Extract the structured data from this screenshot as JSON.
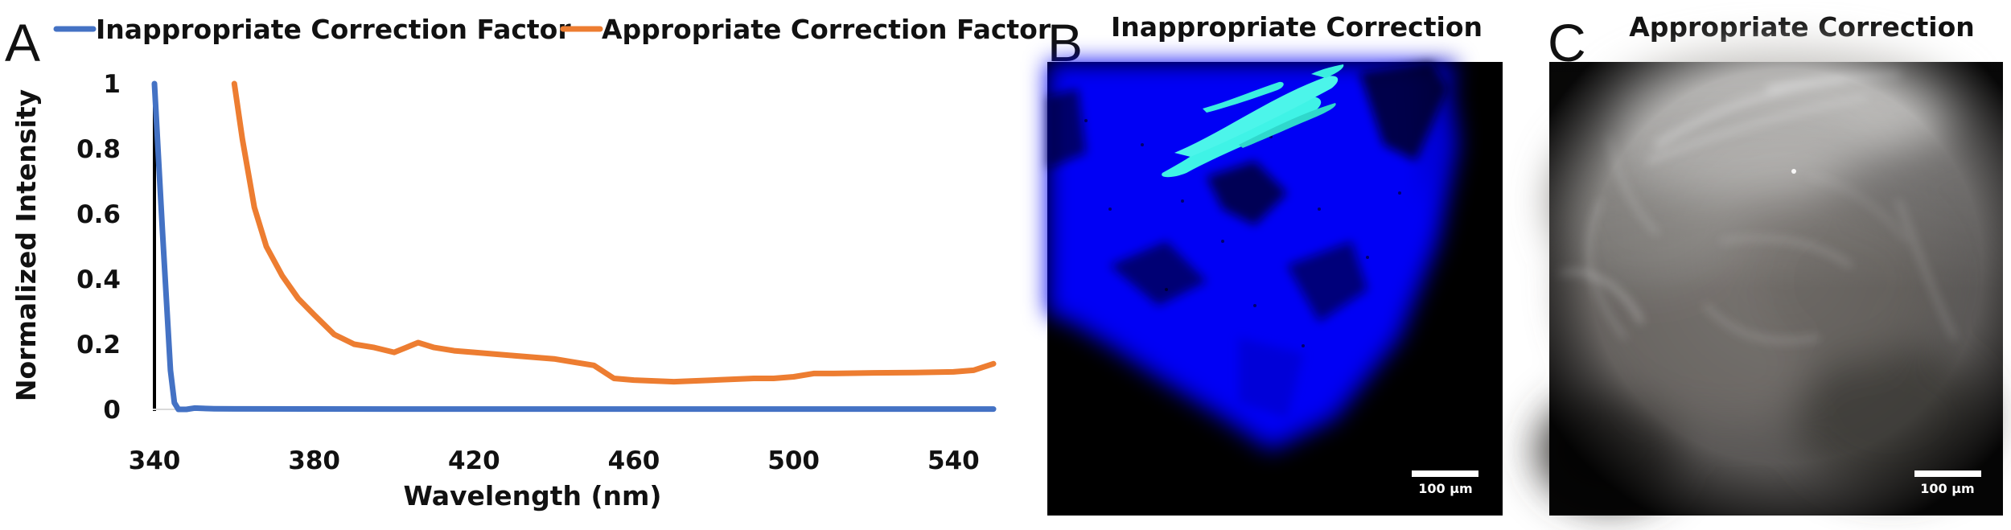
{
  "panels": {
    "a": {
      "letter": "A"
    },
    "b": {
      "letter": "B",
      "title": "Inappropriate Correction",
      "scale_bar_label": "100 µm"
    },
    "c": {
      "letter": "C",
      "title": "Appropriate Correction",
      "scale_bar_label": "100 µm"
    }
  },
  "colors": {
    "inappropriate": "#4472C4",
    "appropriate": "#ED7D31"
  },
  "chart_data": {
    "type": "line",
    "title": "",
    "xlabel": "Wavelength (nm)",
    "ylabel": "Normalized Intensity",
    "xlim": [
      340,
      550
    ],
    "ylim": [
      0,
      1
    ],
    "xticks": [
      340,
      380,
      420,
      460,
      500,
      540
    ],
    "yticks": [
      0,
      0.2,
      0.4,
      0.6,
      0.8,
      1
    ],
    "ytick_labels": [
      "0",
      "0.2",
      "0.4",
      "0.6",
      "0.8",
      "1"
    ],
    "legend_position": "top",
    "series": [
      {
        "name": "Inappropriate Correction Factor",
        "x": [
          340,
          342,
          344,
          345,
          346,
          348,
          350,
          352,
          355,
          360,
          400,
          450,
          500,
          550
        ],
        "y": [
          1.0,
          0.55,
          0.12,
          0.02,
          0.0,
          0.0,
          0.004,
          0.003,
          0.002,
          0.0015,
          0.001,
          0.001,
          0.001,
          0.001
        ]
      },
      {
        "name": "Appropriate Correction Factor",
        "x": [
          360,
          362,
          365,
          368,
          372,
          376,
          380,
          385,
          390,
          395,
          400,
          403,
          406,
          410,
          415,
          420,
          430,
          440,
          445,
          450,
          455,
          460,
          470,
          480,
          490,
          495,
          500,
          505,
          510,
          520,
          530,
          540,
          545,
          550
        ],
        "y": [
          1.0,
          0.83,
          0.62,
          0.5,
          0.41,
          0.34,
          0.29,
          0.23,
          0.2,
          0.19,
          0.175,
          0.19,
          0.205,
          0.19,
          0.18,
          0.175,
          0.165,
          0.155,
          0.145,
          0.135,
          0.095,
          0.09,
          0.085,
          0.09,
          0.095,
          0.095,
          0.1,
          0.11,
          0.11,
          0.112,
          0.113,
          0.115,
          0.12,
          0.14
        ]
      }
    ]
  }
}
